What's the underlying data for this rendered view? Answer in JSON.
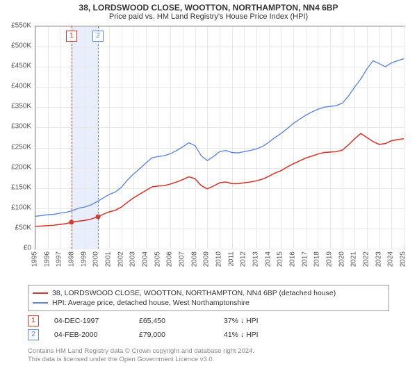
{
  "title_line1": "38, LORDSWOOD CLOSE, WOOTTON, NORTHAMPTON, NN4 6BP",
  "title_line2": "Price paid vs. HM Land Registry's House Price Index (HPI)",
  "chart": {
    "type": "line",
    "background_color": "#ffffff",
    "grid_color": "#e8e8e8",
    "axis_color": "#888888",
    "tick_label_color": "#555555",
    "tick_fontsize": 10,
    "x": {
      "min": 1995,
      "max": 2025,
      "tick_step": 1,
      "label_rotation": -90,
      "ticks": [
        1995,
        1996,
        1997,
        1998,
        1999,
        2000,
        2001,
        2002,
        2003,
        2004,
        2005,
        2006,
        2007,
        2008,
        2009,
        2010,
        2011,
        2012,
        2013,
        2014,
        2015,
        2016,
        2017,
        2018,
        2019,
        2020,
        2021,
        2022,
        2023,
        2024,
        2025
      ]
    },
    "y": {
      "min": 0,
      "max": 550000,
      "tick_step": 50000,
      "prefix": "£",
      "suffix": "K",
      "divide": 1000,
      "ticks": [
        0,
        50000,
        100000,
        150000,
        200000,
        250000,
        300000,
        350000,
        400000,
        450000,
        500000,
        550000
      ]
    },
    "event_band": {
      "x_from": 1997.93,
      "x_to": 2000.1,
      "fill": "#e8eefb"
    },
    "events": [
      {
        "n": "1",
        "x": 1997.93,
        "line_color": "#d43a2f",
        "box_border": "#d43a2f"
      },
      {
        "n": "2",
        "x": 2000.1,
        "line_color": "#5f86e0",
        "box_border": "#5f86e0"
      }
    ],
    "series": [
      {
        "id": "hpi",
        "label": "HPI: Average price, detached house, West Northamptonshire",
        "color": "#5f86e0",
        "line_width": 1.4,
        "points": [
          [
            1995.0,
            80000
          ],
          [
            1995.5,
            82000
          ],
          [
            1996.0,
            84000
          ],
          [
            1996.5,
            85000
          ],
          [
            1997.0,
            88000
          ],
          [
            1997.5,
            90000
          ],
          [
            1998.0,
            94000
          ],
          [
            1998.5,
            100000
          ],
          [
            1999.0,
            103000
          ],
          [
            1999.5,
            108000
          ],
          [
            2000.0,
            116000
          ],
          [
            2000.5,
            125000
          ],
          [
            2001.0,
            134000
          ],
          [
            2001.5,
            140000
          ],
          [
            2002.0,
            152000
          ],
          [
            2002.5,
            170000
          ],
          [
            2003.0,
            185000
          ],
          [
            2003.5,
            198000
          ],
          [
            2004.0,
            212000
          ],
          [
            2004.5,
            225000
          ],
          [
            2005.0,
            228000
          ],
          [
            2005.5,
            230000
          ],
          [
            2006.0,
            235000
          ],
          [
            2006.5,
            243000
          ],
          [
            2007.0,
            252000
          ],
          [
            2007.5,
            262000
          ],
          [
            2008.0,
            255000
          ],
          [
            2008.5,
            230000
          ],
          [
            2009.0,
            218000
          ],
          [
            2009.5,
            228000
          ],
          [
            2010.0,
            240000
          ],
          [
            2010.5,
            243000
          ],
          [
            2011.0,
            238000
          ],
          [
            2011.5,
            237000
          ],
          [
            2012.0,
            240000
          ],
          [
            2012.5,
            243000
          ],
          [
            2013.0,
            247000
          ],
          [
            2013.5,
            253000
          ],
          [
            2014.0,
            263000
          ],
          [
            2014.5,
            275000
          ],
          [
            2015.0,
            285000
          ],
          [
            2015.5,
            297000
          ],
          [
            2016.0,
            310000
          ],
          [
            2016.5,
            320000
          ],
          [
            2017.0,
            330000
          ],
          [
            2017.5,
            338000
          ],
          [
            2018.0,
            345000
          ],
          [
            2018.5,
            350000
          ],
          [
            2019.0,
            352000
          ],
          [
            2019.5,
            354000
          ],
          [
            2020.0,
            360000
          ],
          [
            2020.5,
            378000
          ],
          [
            2021.0,
            400000
          ],
          [
            2021.5,
            420000
          ],
          [
            2022.0,
            445000
          ],
          [
            2022.5,
            465000
          ],
          [
            2023.0,
            458000
          ],
          [
            2023.5,
            450000
          ],
          [
            2024.0,
            460000
          ],
          [
            2024.5,
            465000
          ],
          [
            2025.0,
            470000
          ]
        ]
      },
      {
        "id": "price_paid",
        "label": "38, LORDSWOOD CLOSE, WOOTTON, NORTHAMPTON, NN4 6BP (detached house)",
        "color": "#d43a2f",
        "line_width": 1.6,
        "marker_points": [
          [
            1997.93,
            65450
          ],
          [
            2000.1,
            79000
          ]
        ],
        "marker_radius": 3.5,
        "points": [
          [
            1995.0,
            55000
          ],
          [
            1995.5,
            56000
          ],
          [
            1996.0,
            57000
          ],
          [
            1996.5,
            58000
          ],
          [
            1997.0,
            60000
          ],
          [
            1997.5,
            62000
          ],
          [
            1997.93,
            65450
          ],
          [
            1998.5,
            68000
          ],
          [
            1999.0,
            70000
          ],
          [
            1999.5,
            73000
          ],
          [
            2000.1,
            79000
          ],
          [
            2000.5,
            85000
          ],
          [
            2001.0,
            91000
          ],
          [
            2001.5,
            95000
          ],
          [
            2002.0,
            103000
          ],
          [
            2002.5,
            115000
          ],
          [
            2003.0,
            126000
          ],
          [
            2003.5,
            135000
          ],
          [
            2004.0,
            144000
          ],
          [
            2004.5,
            153000
          ],
          [
            2005.0,
            155000
          ],
          [
            2005.5,
            156000
          ],
          [
            2006.0,
            160000
          ],
          [
            2006.5,
            165000
          ],
          [
            2007.0,
            171000
          ],
          [
            2007.5,
            178000
          ],
          [
            2008.0,
            173000
          ],
          [
            2008.5,
            156000
          ],
          [
            2009.0,
            148000
          ],
          [
            2009.5,
            155000
          ],
          [
            2010.0,
            163000
          ],
          [
            2010.5,
            165000
          ],
          [
            2011.0,
            161000
          ],
          [
            2011.5,
            161000
          ],
          [
            2012.0,
            163000
          ],
          [
            2012.5,
            165000
          ],
          [
            2013.0,
            168000
          ],
          [
            2013.5,
            172000
          ],
          [
            2014.0,
            179000
          ],
          [
            2014.5,
            187000
          ],
          [
            2015.0,
            193000
          ],
          [
            2015.5,
            202000
          ],
          [
            2016.0,
            210000
          ],
          [
            2016.5,
            217000
          ],
          [
            2017.0,
            224000
          ],
          [
            2017.5,
            229000
          ],
          [
            2018.0,
            234000
          ],
          [
            2018.5,
            238000
          ],
          [
            2019.0,
            239000
          ],
          [
            2019.5,
            240000
          ],
          [
            2020.0,
            244000
          ],
          [
            2020.5,
            257000
          ],
          [
            2021.0,
            272000
          ],
          [
            2021.5,
            285000
          ],
          [
            2022.0,
            275000
          ],
          [
            2022.5,
            265000
          ],
          [
            2023.0,
            258000
          ],
          [
            2023.5,
            260000
          ],
          [
            2024.0,
            267000
          ],
          [
            2024.5,
            270000
          ],
          [
            2025.0,
            272000
          ]
        ]
      }
    ]
  },
  "legend": {
    "border_color": "#999999",
    "items": [
      {
        "color": "#d43a2f",
        "label": "38, LORDSWOOD CLOSE, WOOTTON, NORTHAMPTON, NN4 6BP (detached house)"
      },
      {
        "color": "#5f86e0",
        "label": "HPI: Average price, detached house, West Northamptonshire"
      }
    ]
  },
  "event_rows": [
    {
      "n": "1",
      "box_border": "#d43a2f",
      "date": "04-DEC-1997",
      "price": "£65,450",
      "pct": "37%",
      "arrow": "↓",
      "ref": "HPI"
    },
    {
      "n": "2",
      "box_border": "#5f86e0",
      "date": "04-FEB-2000",
      "price": "£79,000",
      "pct": "41%",
      "arrow": "↓",
      "ref": "HPI"
    }
  ],
  "attribution_line1": "Contains HM Land Registry data © Crown copyright and database right 2024.",
  "attribution_line2": "This data is licensed under the Open Government Licence v3.0."
}
